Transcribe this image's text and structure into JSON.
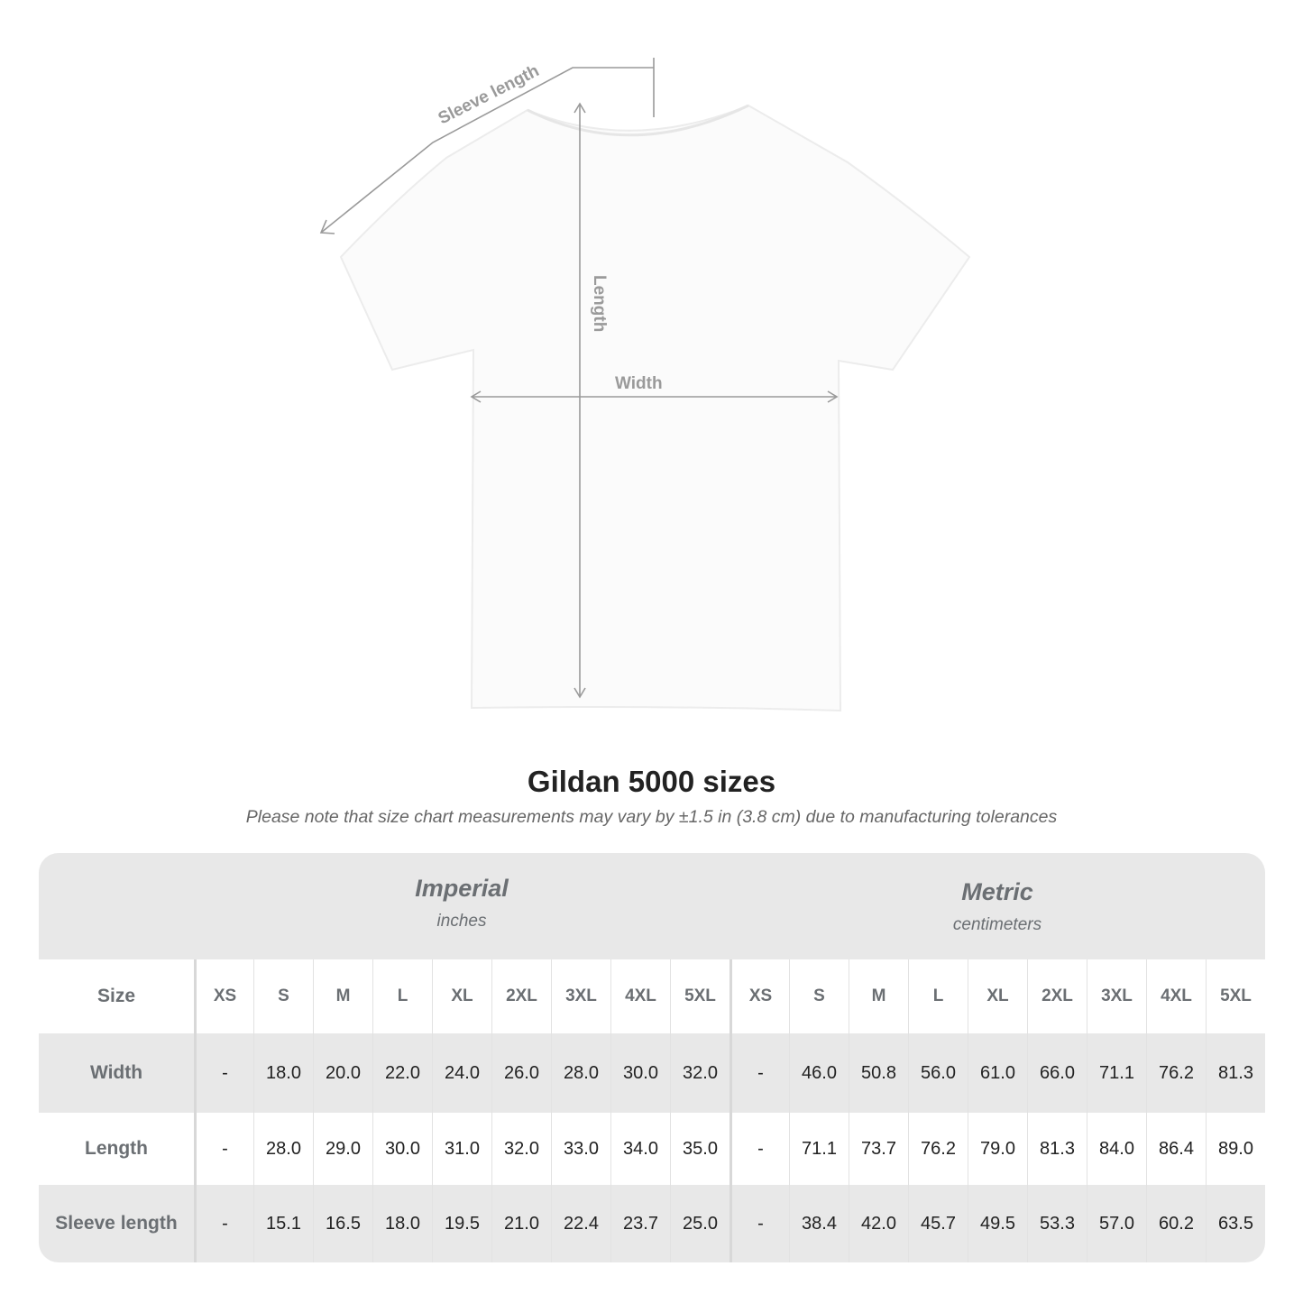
{
  "diagram": {
    "labels": {
      "sleeve": "Sleeve length",
      "length": "Length",
      "width": "Width"
    },
    "line_color": "#999999"
  },
  "title": "Gildan 5000 sizes",
  "subtitle": "Please note that size chart measurements may vary by ±1.5 in (3.8 cm) due to manufacturing tolerances",
  "table": {
    "imperial": {
      "system": "Imperial",
      "unit": "inches"
    },
    "metric": {
      "system": "Metric",
      "unit": "centimeters"
    },
    "size_label": "Size",
    "sizes": [
      "XS",
      "S",
      "M",
      "L",
      "XL",
      "2XL",
      "3XL",
      "4XL",
      "5XL"
    ],
    "rows": [
      {
        "label": "Width",
        "imperial": [
          "-",
          "18.0",
          "20.0",
          "22.0",
          "24.0",
          "26.0",
          "28.0",
          "30.0",
          "32.0"
        ],
        "metric": [
          "-",
          "46.0",
          "50.8",
          "56.0",
          "61.0",
          "66.0",
          "71.1",
          "76.2",
          "81.3"
        ]
      },
      {
        "label": "Length",
        "imperial": [
          "-",
          "28.0",
          "29.0",
          "30.0",
          "31.0",
          "32.0",
          "33.0",
          "34.0",
          "35.0"
        ],
        "metric": [
          "-",
          "71.1",
          "73.7",
          "76.2",
          "79.0",
          "81.3",
          "84.0",
          "86.4",
          "89.0"
        ]
      },
      {
        "label": "Sleeve length",
        "imperial": [
          "-",
          "15.1",
          "16.5",
          "18.0",
          "19.5",
          "21.0",
          "22.4",
          "23.7",
          "25.0"
        ],
        "metric": [
          "-",
          "38.4",
          "42.0",
          "45.7",
          "49.5",
          "53.3",
          "57.0",
          "60.2",
          "63.5"
        ]
      }
    ]
  }
}
